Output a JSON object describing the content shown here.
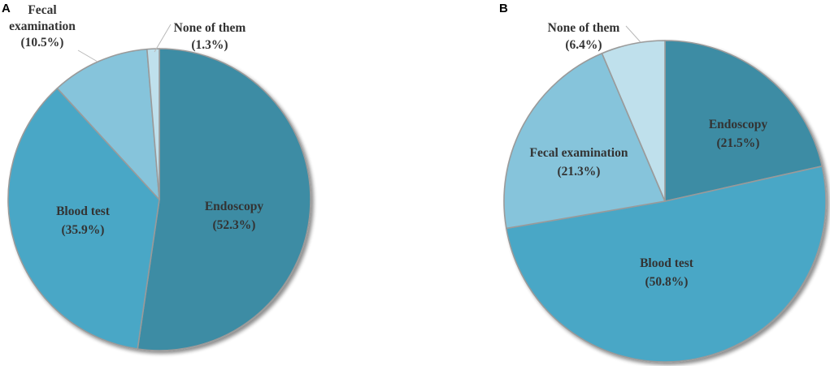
{
  "chart_data": [
    {
      "type": "pie",
      "panel": "A",
      "start": "12 o'clock, clockwise",
      "slices": [
        {
          "label": "Endoscopy",
          "value": 52.3,
          "value_text": "(52.3%)",
          "color": "#3e8ca4"
        },
        {
          "label": "Blood test",
          "value": 35.9,
          "value_text": "(35.9%)",
          "color": "#4aa7c6"
        },
        {
          "label": "Fecal examination",
          "label_lines": [
            "Fecal",
            "examination"
          ],
          "value": 10.5,
          "value_text": "(10.5%)",
          "color": "#86c4db"
        },
        {
          "label": "None of them",
          "value": 1.3,
          "value_text": "(1.3%)",
          "color": "#bfe0ec"
        }
      ]
    },
    {
      "type": "pie",
      "panel": "B",
      "start": "12 o'clock, clockwise",
      "slices": [
        {
          "label": "Endoscopy",
          "value": 21.5,
          "value_text": "(21.5%)",
          "color": "#3e8ca4"
        },
        {
          "label": "Blood test",
          "value": 50.8,
          "value_text": "(50.8%)",
          "color": "#4aa7c6"
        },
        {
          "label": "Fecal examination",
          "value": 21.3,
          "value_text": "(21.3%)",
          "color": "#86c4db"
        },
        {
          "label": "None of them",
          "value": 6.4,
          "value_text": "(6.4%)",
          "color": "#bfe0ec"
        }
      ]
    }
  ]
}
